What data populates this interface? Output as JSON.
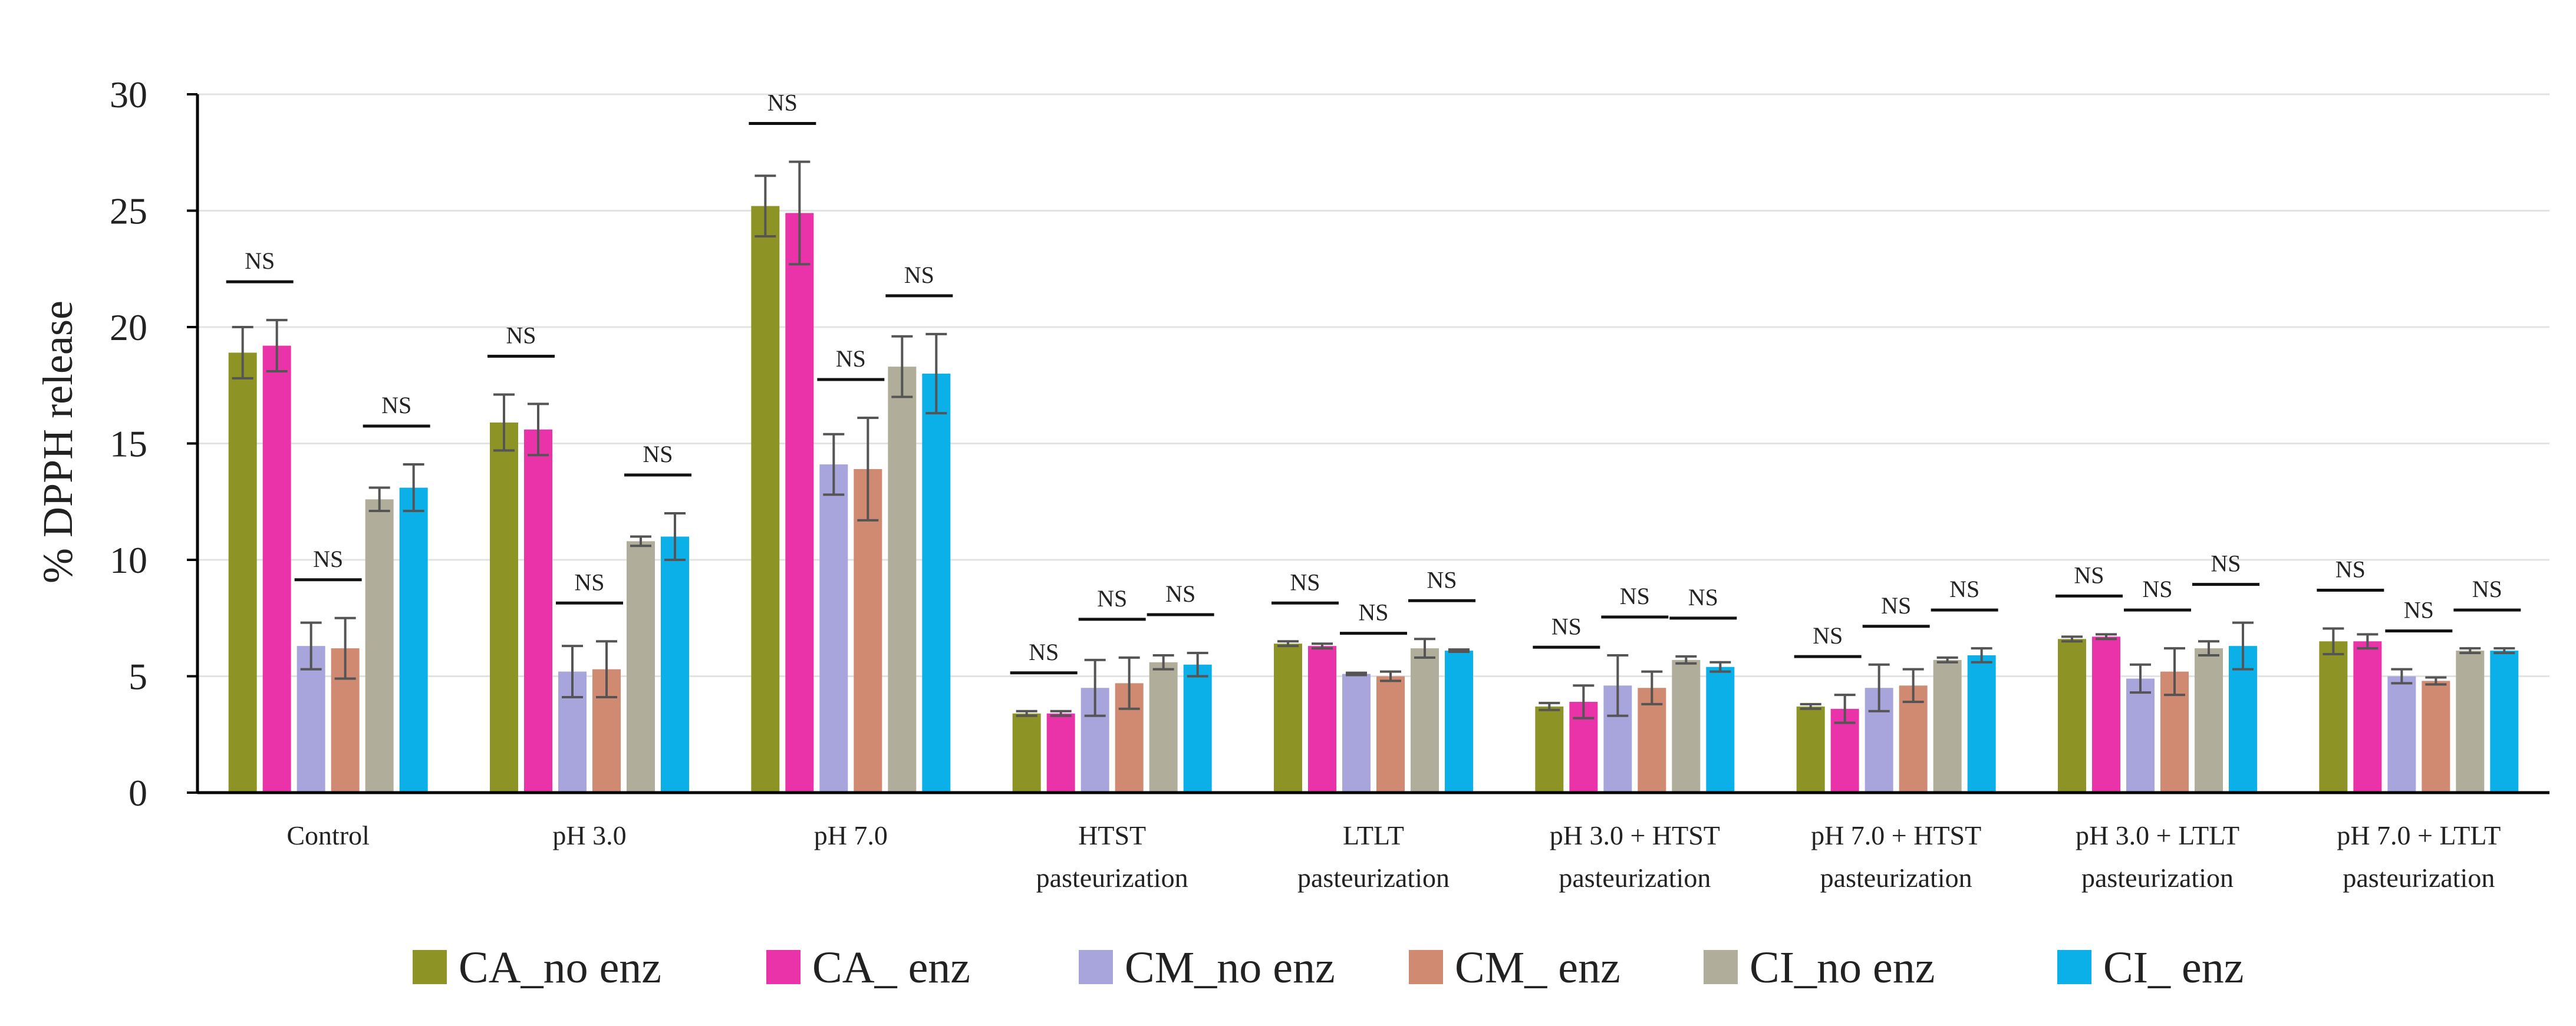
{
  "chart_data": {
    "type": "bar",
    "title": "",
    "xlabel": "",
    "ylabel": "% DPPH release",
    "ylim": [
      0,
      30
    ],
    "yticks": [
      0,
      5,
      10,
      15,
      20,
      25,
      30
    ],
    "grid": true,
    "legend_position": "bottom",
    "categories": [
      [
        "Control"
      ],
      [
        "pH 3.0"
      ],
      [
        "pH 7.0"
      ],
      [
        "HTST",
        "pasteurization"
      ],
      [
        "LTLT",
        "pasteurization"
      ],
      [
        "pH 3.0 + HTST",
        "pasteurization"
      ],
      [
        "pH 7.0 + HTST",
        "pasteurization"
      ],
      [
        "pH 3.0 + LTLT",
        "pasteurization"
      ],
      [
        "pH 7.0 + LTLT",
        "pasteurization"
      ]
    ],
    "series": [
      {
        "name": "CA_no enz",
        "color": "#8e9326",
        "values": [
          18.9,
          15.9,
          25.2,
          3.4,
          6.4,
          3.7,
          3.7,
          6.6,
          6.5
        ],
        "errors": [
          1.1,
          1.2,
          1.3,
          0.1,
          0.1,
          0.15,
          0.1,
          0.1,
          0.55
        ]
      },
      {
        "name": "CA_ enz",
        "color": "#ea33a8",
        "values": [
          19.2,
          15.6,
          24.9,
          3.4,
          6.3,
          3.9,
          3.6,
          6.7,
          6.5
        ],
        "errors": [
          1.1,
          1.1,
          2.2,
          0.1,
          0.1,
          0.7,
          0.6,
          0.1,
          0.3
        ]
      },
      {
        "name": "CM_no enz",
        "color": "#a8a4dc",
        "values": [
          6.3,
          5.2,
          14.1,
          4.5,
          5.1,
          4.6,
          4.5,
          4.9,
          5.0
        ],
        "errors": [
          1.0,
          1.1,
          1.3,
          1.2,
          0.05,
          1.3,
          1.0,
          0.6,
          0.3
        ]
      },
      {
        "name": "CM_ enz",
        "color": "#d18a72",
        "values": [
          6.2,
          5.3,
          13.9,
          4.7,
          5.0,
          4.5,
          4.6,
          5.2,
          4.8
        ],
        "errors": [
          1.3,
          1.2,
          2.2,
          1.1,
          0.2,
          0.7,
          0.7,
          1.0,
          0.15
        ]
      },
      {
        "name": "CI_no enz",
        "color": "#b0ae9a",
        "values": [
          12.6,
          10.8,
          18.3,
          5.6,
          6.2,
          5.7,
          5.7,
          6.2,
          6.1
        ],
        "errors": [
          0.5,
          0.2,
          1.3,
          0.3,
          0.4,
          0.15,
          0.1,
          0.3,
          0.1
        ]
      },
      {
        "name": "CI_ enz",
        "color": "#0bb0e8",
        "values": [
          13.1,
          11.0,
          18.0,
          5.5,
          6.1,
          5.4,
          5.9,
          6.3,
          6.1
        ],
        "errors": [
          1.0,
          1.0,
          1.7,
          0.5,
          0.05,
          0.2,
          0.3,
          1.0,
          0.1
        ]
      }
    ],
    "annotations": [
      {
        "text": "NS",
        "category": 0,
        "series": [
          0,
          1
        ]
      },
      {
        "text": "NS",
        "category": 0,
        "series": [
          2,
          3
        ]
      },
      {
        "text": "NS",
        "category": 0,
        "series": [
          4,
          5
        ]
      },
      {
        "text": "NS",
        "category": 1,
        "series": [
          0,
          1
        ]
      },
      {
        "text": "NS",
        "category": 1,
        "series": [
          2,
          3
        ]
      },
      {
        "text": "NS",
        "category": 1,
        "series": [
          4,
          5
        ]
      },
      {
        "text": "NS",
        "category": 2,
        "series": [
          0,
          1
        ]
      },
      {
        "text": "NS",
        "category": 2,
        "series": [
          2,
          3
        ]
      },
      {
        "text": "NS",
        "category": 2,
        "series": [
          4,
          5
        ]
      },
      {
        "text": "NS",
        "category": 3,
        "series": [
          0,
          1
        ]
      },
      {
        "text": "NS",
        "category": 3,
        "series": [
          2,
          3
        ]
      },
      {
        "text": "NS",
        "category": 3,
        "series": [
          4,
          5
        ]
      },
      {
        "text": "NS",
        "category": 4,
        "series": [
          0,
          1
        ]
      },
      {
        "text": "NS",
        "category": 4,
        "series": [
          2,
          3
        ]
      },
      {
        "text": "NS",
        "category": 4,
        "series": [
          4,
          5
        ]
      },
      {
        "text": "NS",
        "category": 5,
        "series": [
          0,
          1
        ]
      },
      {
        "text": "NS",
        "category": 5,
        "series": [
          2,
          3
        ]
      },
      {
        "text": "NS",
        "category": 5,
        "series": [
          4,
          5
        ]
      },
      {
        "text": "NS",
        "category": 6,
        "series": [
          0,
          1
        ]
      },
      {
        "text": "NS",
        "category": 6,
        "series": [
          2,
          3
        ]
      },
      {
        "text": "NS",
        "category": 6,
        "series": [
          4,
          5
        ]
      },
      {
        "text": "NS",
        "category": 7,
        "series": [
          0,
          1
        ]
      },
      {
        "text": "NS",
        "category": 7,
        "series": [
          2,
          3
        ]
      },
      {
        "text": "NS",
        "category": 7,
        "series": [
          4,
          5
        ]
      },
      {
        "text": "NS",
        "category": 8,
        "series": [
          0,
          1
        ]
      },
      {
        "text": "NS",
        "category": 8,
        "series": [
          2,
          3
        ]
      },
      {
        "text": "NS",
        "category": 8,
        "series": [
          4,
          5
        ]
      }
    ]
  }
}
